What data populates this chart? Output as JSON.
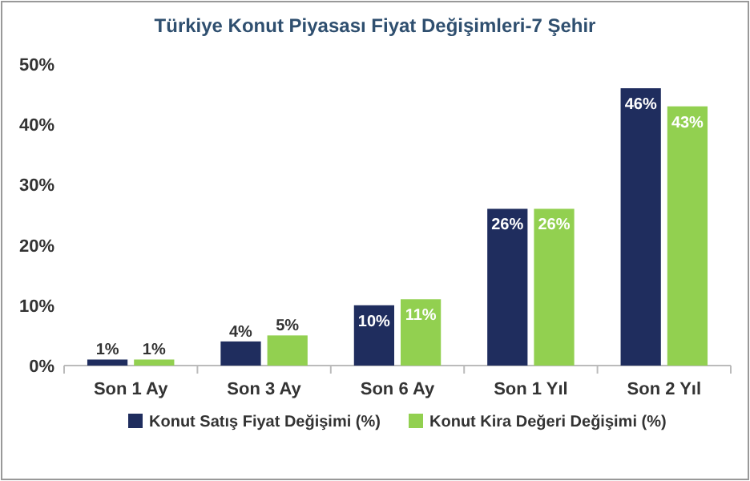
{
  "chart_data": {
    "type": "bar",
    "title": "Türkiye Konut Piyasası Fiyat Değişimleri-7 Şehir",
    "categories": [
      "Son 1 Ay",
      "Son 3 Ay",
      "Son 6 Ay",
      "Son 1 Yıl",
      "Son 2 Yıl"
    ],
    "series": [
      {
        "name": "Konut Satış Fiyat Değişimi (%)",
        "color": "#1f2d5e",
        "values": [
          1,
          4,
          10,
          26,
          46
        ],
        "value_labels": [
          "1%",
          "4%",
          "10%",
          "26%",
          "46%"
        ]
      },
      {
        "name": "Konut Kira Değeri Değişimi (%)",
        "color": "#92d050",
        "values": [
          1,
          5,
          11,
          26,
          43
        ],
        "value_labels": [
          "1%",
          "5%",
          "11%",
          "26%",
          "43%"
        ]
      }
    ],
    "ylim": [
      0,
      50
    ],
    "yticks": [
      {
        "value": 0,
        "label": "0%"
      },
      {
        "value": 10,
        "label": "10%"
      },
      {
        "value": 20,
        "label": "20%"
      },
      {
        "value": 30,
        "label": "30%"
      },
      {
        "value": 40,
        "label": "40%"
      },
      {
        "value": 50,
        "label": "50%"
      }
    ],
    "legend": "bottom"
  }
}
